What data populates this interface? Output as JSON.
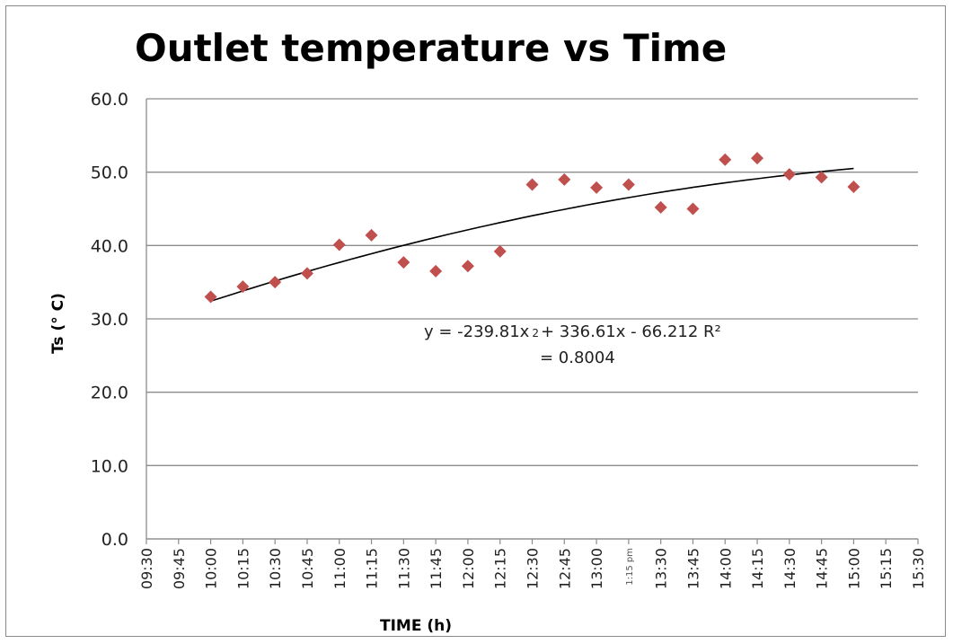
{
  "chart_data": {
    "type": "scatter",
    "title": "Outlet temperature vs Time",
    "xlabel": "TIME (h)",
    "ylabel": "Ts (° C)",
    "ylim": [
      0,
      60
    ],
    "yticks": [
      "0.0",
      "10.0",
      "20.0",
      "30.0",
      "40.0",
      "50.0",
      "60.0"
    ],
    "x_categories": [
      "09:30",
      "09:45",
      "10:00",
      "10:15",
      "10:30",
      "10:45",
      "11:00",
      "11:15",
      "11:30",
      "11:45",
      "12:00",
      "12:15",
      "12:30",
      "12:45",
      "13:00",
      "1:15 pm",
      "13:30",
      "13:45",
      "14:00",
      "14:15",
      "14:30",
      "14:45",
      "15:00",
      "15:15",
      "15:30"
    ],
    "grid": true,
    "series": [
      {
        "points": [
          {
            "x": "10:00",
            "y": 33.0
          },
          {
            "x": "10:15",
            "y": 34.4
          },
          {
            "x": "10:30",
            "y": 35.0
          },
          {
            "x": "10:45",
            "y": 36.2
          },
          {
            "x": "11:00",
            "y": 40.1
          },
          {
            "x": "11:15",
            "y": 41.4
          },
          {
            "x": "11:30",
            "y": 37.7
          },
          {
            "x": "11:45",
            "y": 36.5
          },
          {
            "x": "12:00",
            "y": 37.2
          },
          {
            "x": "12:15",
            "y": 39.2
          },
          {
            "x": "12:30",
            "y": 48.3
          },
          {
            "x": "12:45",
            "y": 49.0
          },
          {
            "x": "13:00",
            "y": 47.9
          },
          {
            "x": "1:15 pm",
            "y": 48.3
          },
          {
            "x": "13:30",
            "y": 45.2
          },
          {
            "x": "13:45",
            "y": 45.0
          },
          {
            "x": "14:00",
            "y": 51.7
          },
          {
            "x": "14:15",
            "y": 51.9
          },
          {
            "x": "14:30",
            "y": 49.7
          },
          {
            "x": "14:45",
            "y": 49.3
          },
          {
            "x": "15:00",
            "y": 48.0
          }
        ],
        "color": "#c0504d",
        "marker": "diamond"
      }
    ],
    "trendline": {
      "type": "polynomial-2",
      "color": "#000000",
      "coefficients": {
        "a": -239.81,
        "b": 336.61,
        "c": -66.212
      },
      "x_unit": "fraction of day",
      "equation_line1": "y = -239.81x",
      "equation_exp": "2",
      "equation_line1_rest": "+ 336.61x - 66.212 R²",
      "equation_line2": "= 0.8004"
    }
  }
}
